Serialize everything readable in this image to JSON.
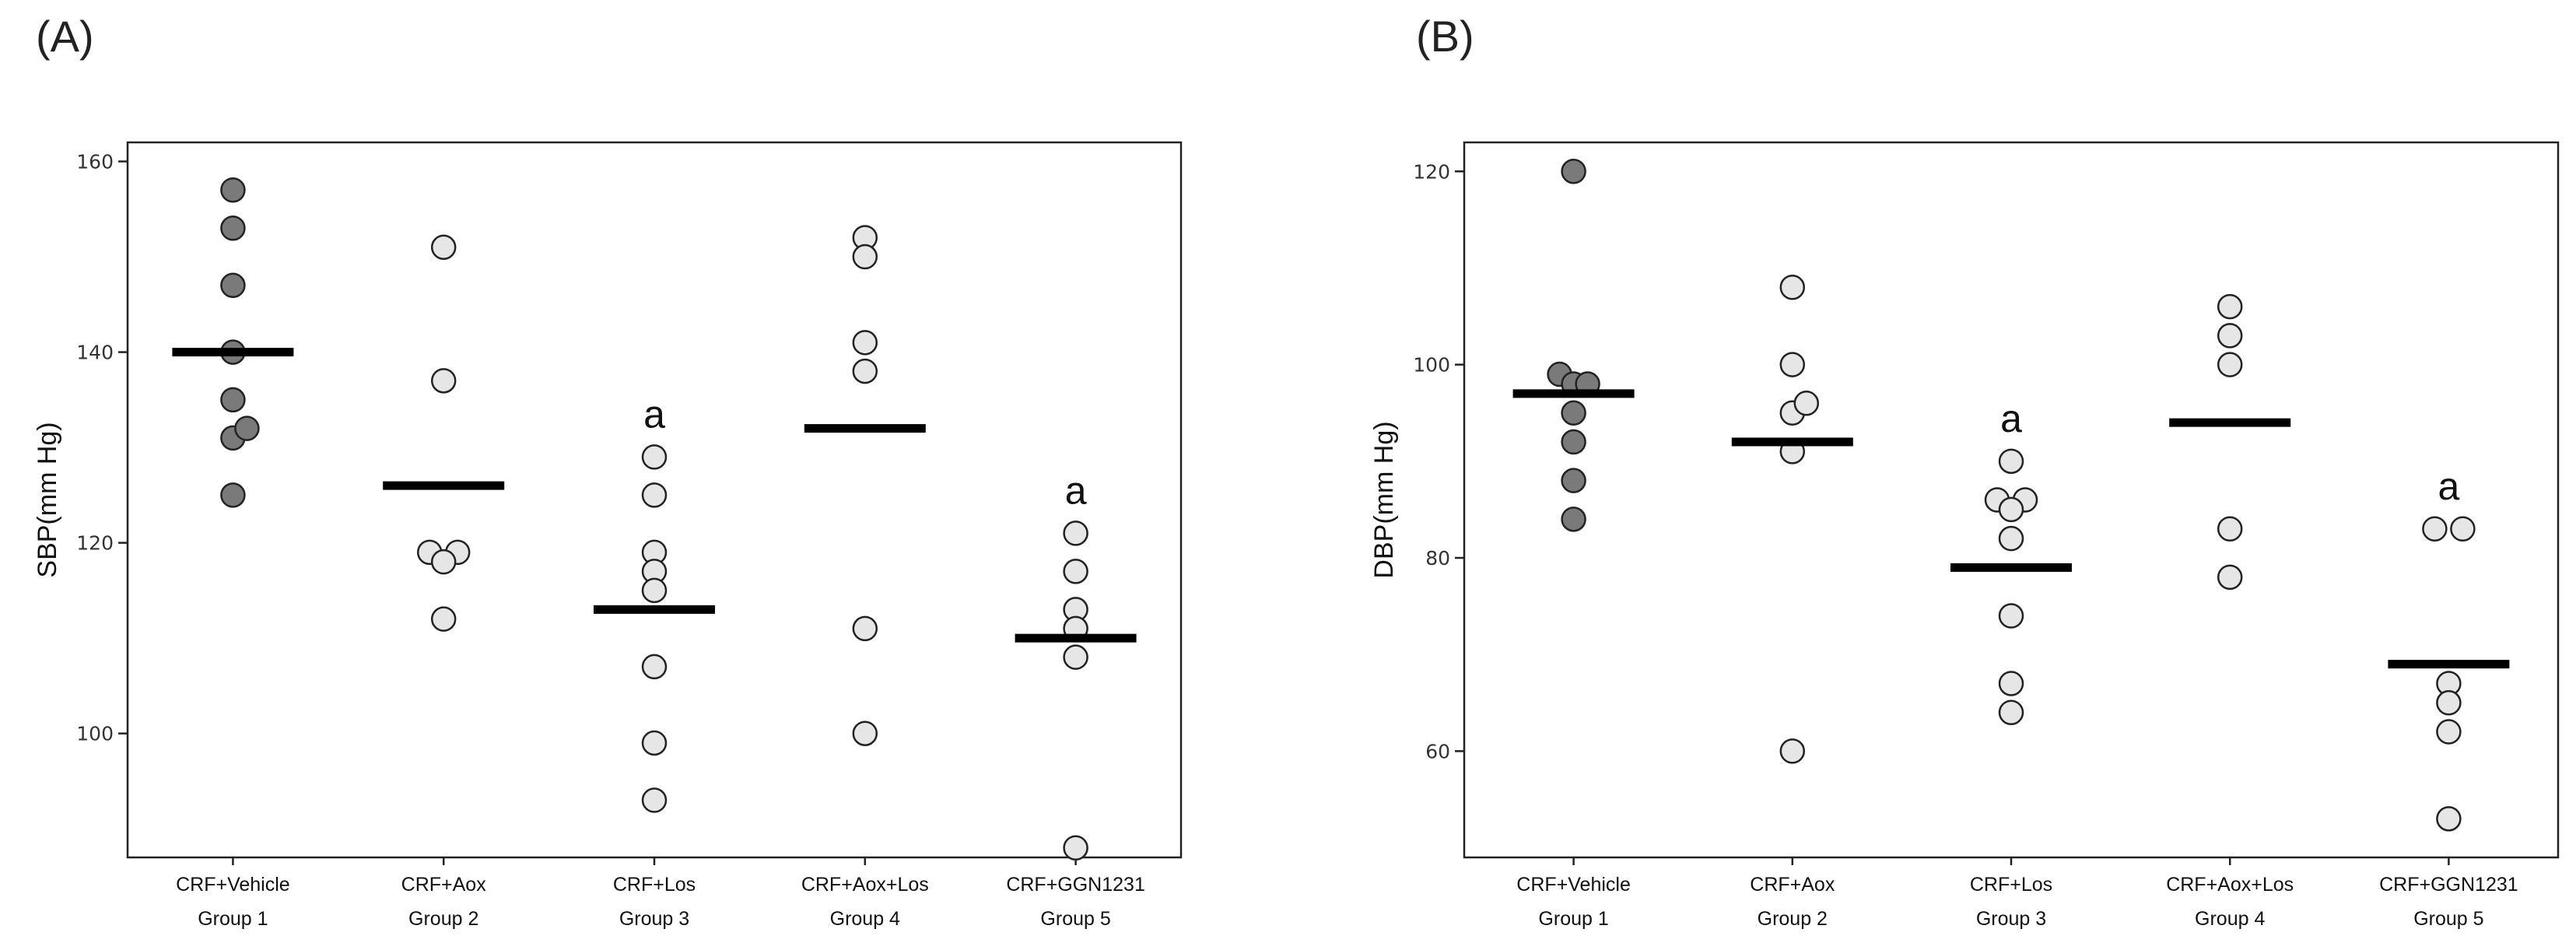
{
  "panels": [
    {
      "label": "(A)",
      "chart_data": {
        "type": "scatter",
        "ylabel": "SBP(mm Hg)",
        "ylim": [
          87,
          162
        ],
        "yticks": [
          100,
          120,
          140,
          160
        ],
        "categories": [
          {
            "name": "CRF+Vehicle",
            "group": "Group 1",
            "fill": "#7a7a7a",
            "mean": 140,
            "sig": "",
            "points": [
              [
                0,
                157
              ],
              [
                0,
                153
              ],
              [
                0,
                147
              ],
              [
                0,
                140
              ],
              [
                0,
                135
              ],
              [
                0,
                131
              ],
              [
                0.6,
                132
              ],
              [
                0,
                125
              ]
            ]
          },
          {
            "name": "CRF+Aox",
            "group": "Group 2",
            "fill": "#e6e6e6",
            "mean": 126,
            "sig": "",
            "points": [
              [
                0,
                151
              ],
              [
                0,
                137
              ],
              [
                -0.6,
                119
              ],
              [
                0.6,
                119
              ],
              [
                0,
                118
              ],
              [
                0,
                112
              ]
            ]
          },
          {
            "name": "CRF+Los",
            "group": "Group 3",
            "fill": "#e6e6e6",
            "mean": 113,
            "sig": "a",
            "points": [
              [
                0,
                129
              ],
              [
                0,
                125
              ],
              [
                0,
                119
              ],
              [
                0,
                117
              ],
              [
                0,
                115
              ],
              [
                0,
                107
              ],
              [
                0,
                99
              ],
              [
                0,
                93
              ]
            ]
          },
          {
            "name": "CRF+Aox+Los",
            "group": "Group 4",
            "fill": "#e6e6e6",
            "mean": 132,
            "sig": "",
            "points": [
              [
                0,
                152
              ],
              [
                0,
                150
              ],
              [
                0,
                141
              ],
              [
                0,
                138
              ],
              [
                0,
                111
              ],
              [
                0,
                100
              ]
            ]
          },
          {
            "name": "CRF+GGN1231",
            "group": "Group 5",
            "fill": "#e6e6e6",
            "mean": 110,
            "sig": "a",
            "points": [
              [
                0,
                121
              ],
              [
                0,
                117
              ],
              [
                0,
                113
              ],
              [
                0,
                111
              ],
              [
                0,
                108
              ],
              [
                0,
                88
              ]
            ]
          }
        ]
      }
    },
    {
      "label": "(B)",
      "chart_data": {
        "type": "scatter",
        "ylabel": "DBP(mm Hg)",
        "ylim": [
          49,
          123
        ],
        "yticks": [
          60,
          80,
          100,
          120
        ],
        "categories": [
          {
            "name": "CRF+Vehicle",
            "group": "Group 1",
            "fill": "#7a7a7a",
            "mean": 97,
            "sig": "",
            "points": [
              [
                0,
                120
              ],
              [
                -0.6,
                99
              ],
              [
                0,
                98
              ],
              [
                0.6,
                98
              ],
              [
                0,
                95
              ],
              [
                0,
                92
              ],
              [
                0,
                88
              ],
              [
                0,
                84
              ]
            ]
          },
          {
            "name": "CRF+Aox",
            "group": "Group 2",
            "fill": "#e6e6e6",
            "mean": 92,
            "sig": "",
            "points": [
              [
                0,
                108
              ],
              [
                0,
                100
              ],
              [
                0,
                95
              ],
              [
                0.6,
                96
              ],
              [
                0,
                91
              ],
              [
                0,
                60
              ]
            ]
          },
          {
            "name": "CRF+Los",
            "group": "Group 3",
            "fill": "#e6e6e6",
            "mean": 79,
            "sig": "a",
            "points": [
              [
                0,
                90
              ],
              [
                -0.6,
                86
              ],
              [
                0.6,
                86
              ],
              [
                0,
                85
              ],
              [
                0,
                82
              ],
              [
                0,
                74
              ],
              [
                0,
                67
              ],
              [
                0,
                64
              ]
            ]
          },
          {
            "name": "CRF+Aox+Los",
            "group": "Group 4",
            "fill": "#e6e6e6",
            "mean": 94,
            "sig": "",
            "points": [
              [
                0,
                106
              ],
              [
                0,
                103
              ],
              [
                0,
                100
              ],
              [
                0,
                83
              ],
              [
                0,
                78
              ]
            ]
          },
          {
            "name": "CRF+GGN1231",
            "group": "Group 5",
            "fill": "#e6e6e6",
            "mean": 69,
            "sig": "a",
            "points": [
              [
                -0.6,
                83
              ],
              [
                0.6,
                83
              ],
              [
                0,
                67
              ],
              [
                0,
                65
              ],
              [
                0,
                62
              ],
              [
                0,
                53
              ]
            ]
          }
        ]
      }
    }
  ]
}
